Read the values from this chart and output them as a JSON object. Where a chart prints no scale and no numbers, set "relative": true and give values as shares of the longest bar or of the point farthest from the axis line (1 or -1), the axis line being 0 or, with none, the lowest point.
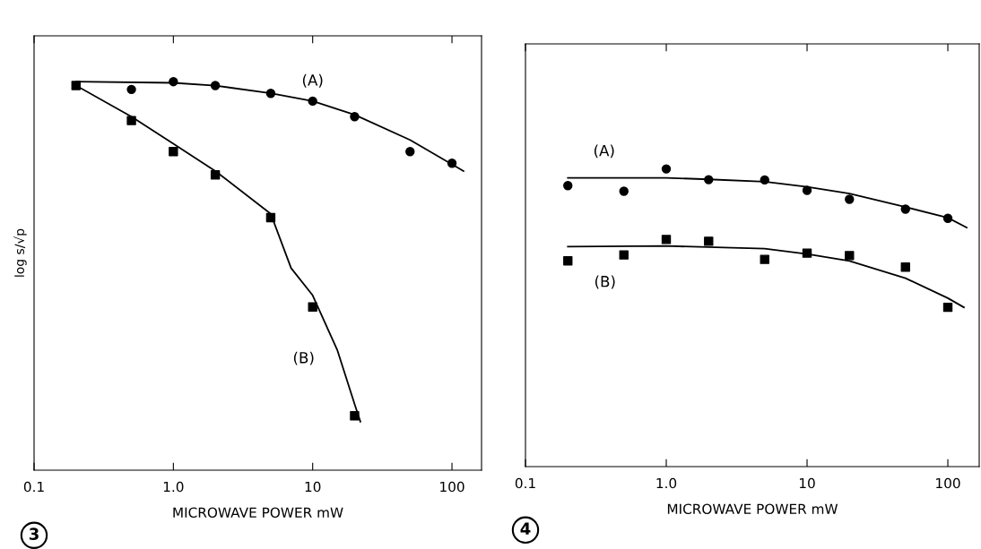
{
  "chart_data": [
    {
      "type": "scatter",
      "relative": true,
      "log": "x",
      "xlabel": "MICROWAVE POWER mW",
      "ylabel": "log s/√p",
      "xlim": [
        0.1,
        163
      ],
      "xticks": [
        0.1,
        {
          "value": 1,
          "label": "1.0"
        },
        10,
        100
      ],
      "grid": false,
      "legend": false,
      "series": [
        {
          "name": "(A)",
          "type": "scatter",
          "marker": "circle",
          "color": "#000000",
          "x": [
            0.5,
            1,
            2,
            5,
            10,
            20,
            50,
            100
          ],
          "values": [
            0.98,
            1.0,
            0.99,
            0.97,
            0.95,
            0.91,
            0.82,
            0.79
          ]
        },
        {
          "name": "(B)",
          "type": "scatter",
          "marker": "square",
          "color": "#000000",
          "x": [
            0.2,
            0.5,
            1,
            2,
            5,
            10,
            20
          ],
          "values": [
            0.99,
            0.9,
            0.82,
            0.76,
            0.65,
            0.42,
            0.14
          ]
        },
        {
          "type": "line",
          "marker": "none",
          "line_style": "solid",
          "color": "#000000",
          "x": [
            0.2,
            1,
            2,
            5,
            10,
            20,
            50,
            121
          ],
          "values": [
            1.0,
            0.997,
            0.99,
            0.97,
            0.95,
            0.915,
            0.85,
            0.77
          ]
        },
        {
          "type": "line",
          "marker": "none",
          "line_style": "solid",
          "color": "#000000",
          "x": [
            0.2,
            0.5,
            1,
            2,
            5,
            7,
            10,
            15,
            20,
            22
          ],
          "values": [
            0.99,
            0.91,
            0.84,
            0.77,
            0.66,
            0.52,
            0.45,
            0.31,
            0.17,
            0.125
          ]
        }
      ],
      "annotations": [
        "3"
      ]
    },
    {
      "type": "scatter",
      "relative": true,
      "log": "x",
      "xlabel": "MICROWAVE POWER mW",
      "xlim": [
        0.1,
        167
      ],
      "xticks": [
        0.1,
        {
          "value": 1,
          "label": "1.0"
        },
        10,
        100
      ],
      "grid": false,
      "legend": false,
      "series": [
        {
          "name": "(A)",
          "type": "scatter",
          "marker": "circle",
          "color": "#000000",
          "x": [
            0.2,
            0.5,
            1,
            2,
            5,
            10,
            20,
            50,
            100
          ],
          "values": [
            0.944,
            0.925,
            1.0,
            0.964,
            0.963,
            0.928,
            0.898,
            0.865,
            0.834
          ]
        },
        {
          "name": "(B)",
          "type": "scatter",
          "marker": "square",
          "color": "#000000",
          "x": [
            0.2,
            0.5,
            1,
            2,
            5,
            10,
            20,
            50,
            100
          ],
          "values": [
            0.691,
            0.711,
            0.763,
            0.757,
            0.696,
            0.717,
            0.709,
            0.67,
            0.535
          ]
        },
        {
          "type": "line",
          "marker": "none",
          "line_style": "solid",
          "color": "#000000",
          "x": [
            0.2,
            1,
            2,
            5,
            10,
            20,
            50,
            100,
            136
          ],
          "values": [
            0.97,
            0.97,
            0.965,
            0.957,
            0.94,
            0.917,
            0.872,
            0.836,
            0.803
          ]
        },
        {
          "type": "line",
          "marker": "none",
          "line_style": "solid",
          "color": "#000000",
          "x": [
            0.2,
            1,
            5,
            10,
            20,
            50,
            100,
            130
          ],
          "values": [
            0.739,
            0.741,
            0.732,
            0.714,
            0.691,
            0.633,
            0.566,
            0.535
          ]
        }
      ],
      "annotations": [
        "4"
      ]
    }
  ]
}
